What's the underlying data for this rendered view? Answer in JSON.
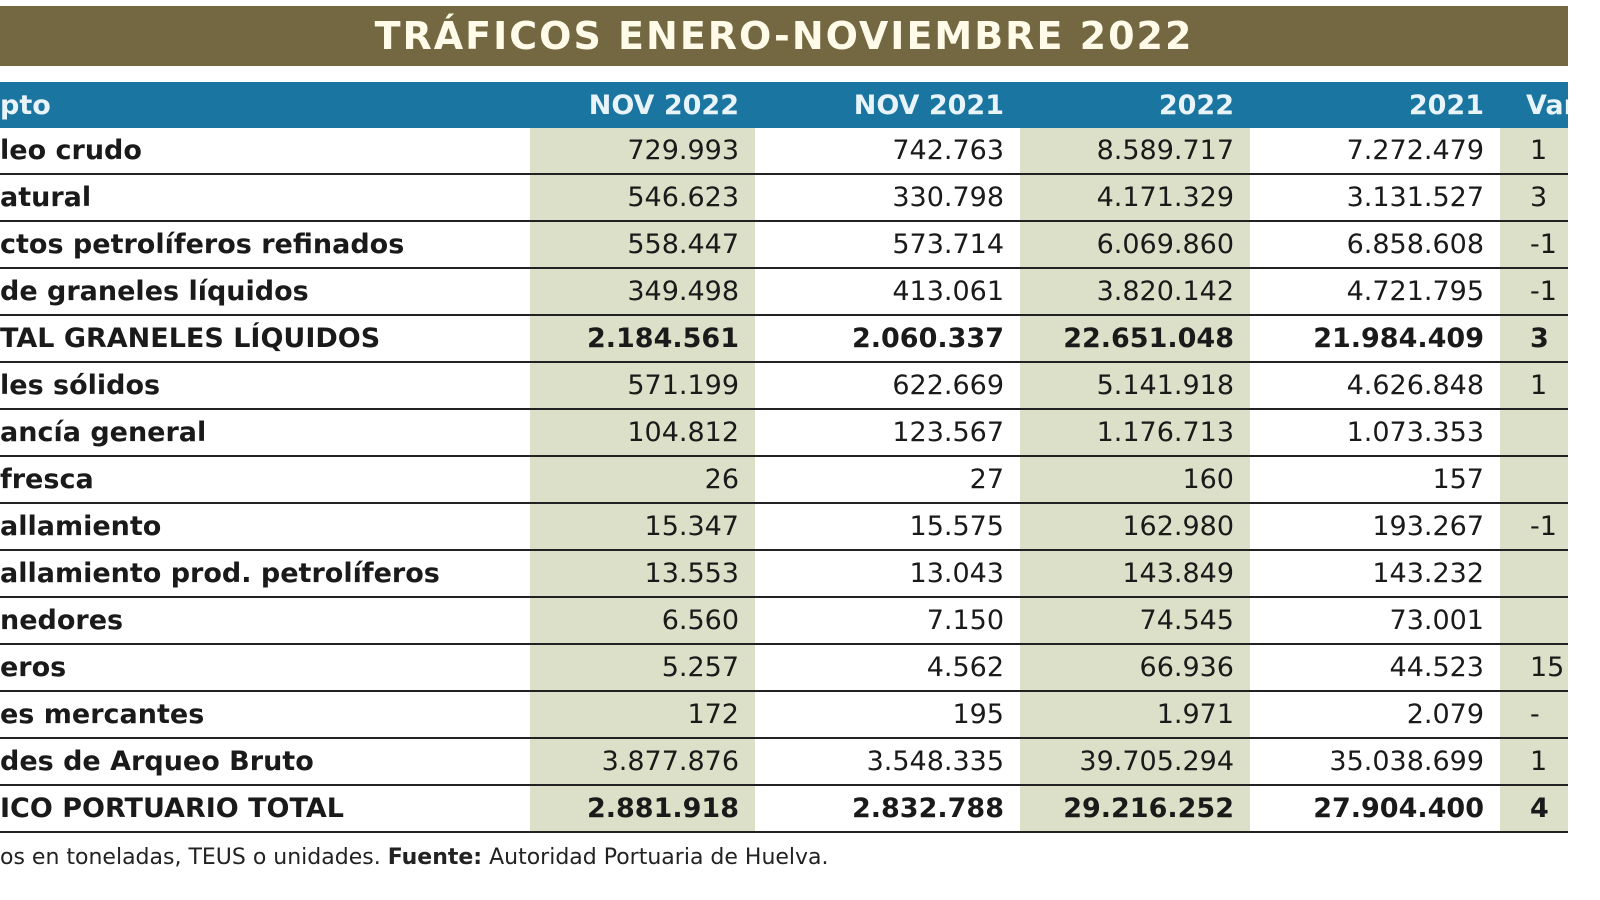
{
  "title": "TRÁFICOS ENERO-NOVIEMBRE 2022",
  "headers": [
    "pto",
    "NOV 2022",
    "NOV 2021",
    "2022",
    "2021",
    "Var"
  ],
  "rows": [
    {
      "label": "leo crudo",
      "v": [
        "729.993",
        "742.763",
        "8.589.717",
        "7.272.479",
        "1"
      ],
      "total": false
    },
    {
      "label": "atural",
      "v": [
        "546.623",
        "330.798",
        "4.171.329",
        "3.131.527",
        "3"
      ],
      "total": false
    },
    {
      "label": "ctos petrolíferos refinados",
      "v": [
        "558.447",
        "573.714",
        "6.069.860",
        "6.858.608",
        "-1"
      ],
      "total": false
    },
    {
      "label": " de graneles líquidos",
      "v": [
        "349.498",
        "413.061",
        "3.820.142",
        "4.721.795",
        "-1"
      ],
      "total": false
    },
    {
      "label": "TAL GRANELES LÍQUIDOS",
      "v": [
        "2.184.561",
        "2.060.337",
        "22.651.048",
        "21.984.409",
        "3"
      ],
      "total": true
    },
    {
      "label": "les sólidos",
      "v": [
        "571.199",
        "622.669",
        "5.141.918",
        "4.626.848",
        "1"
      ],
      "total": false
    },
    {
      "label": "ancía general",
      "v": [
        "104.812",
        "123.567",
        "1.176.713",
        "1.073.353",
        ""
      ],
      "total": false
    },
    {
      "label": " fresca",
      "v": [
        "26",
        "27",
        "160",
        "157",
        ""
      ],
      "total": false
    },
    {
      "label": "allamiento",
      "v": [
        "15.347",
        "15.575",
        "162.980",
        "193.267",
        "-1"
      ],
      "total": false
    },
    {
      "label": "allamiento prod. petrolíferos",
      "v": [
        "13.553",
        "13.043",
        "143.849",
        "143.232",
        ""
      ],
      "total": false
    },
    {
      "label": "nedores",
      "v": [
        "6.560",
        "7.150",
        "74.545",
        "73.001",
        ""
      ],
      "total": false
    },
    {
      "label": "eros",
      "v": [
        "5.257",
        "4.562",
        "66.936",
        "44.523",
        "15"
      ],
      "total": false
    },
    {
      "label": "es mercantes",
      "v": [
        "172",
        "195",
        "1.971",
        "2.079",
        "-"
      ],
      "total": false
    },
    {
      "label": "des de Arqueo Bruto",
      "v": [
        "3.877.876",
        "3.548.335",
        "39.705.294",
        "35.038.699",
        "1"
      ],
      "total": false
    },
    {
      "label": "ICO PORTUARIO TOTAL",
      "v": [
        "2.881.918",
        "2.832.788",
        "29.216.252",
        "27.904.400",
        "4"
      ],
      "total": true
    }
  ],
  "footer": {
    "note": "os en toneladas, TEUS o unidades. ",
    "source_label": "Fuente:",
    "source": " Autoridad Portuaria de Huelva."
  },
  "colors": {
    "title_bar": "#736841",
    "header": "#1a75a0",
    "shaded_column": "#dde0c8"
  }
}
